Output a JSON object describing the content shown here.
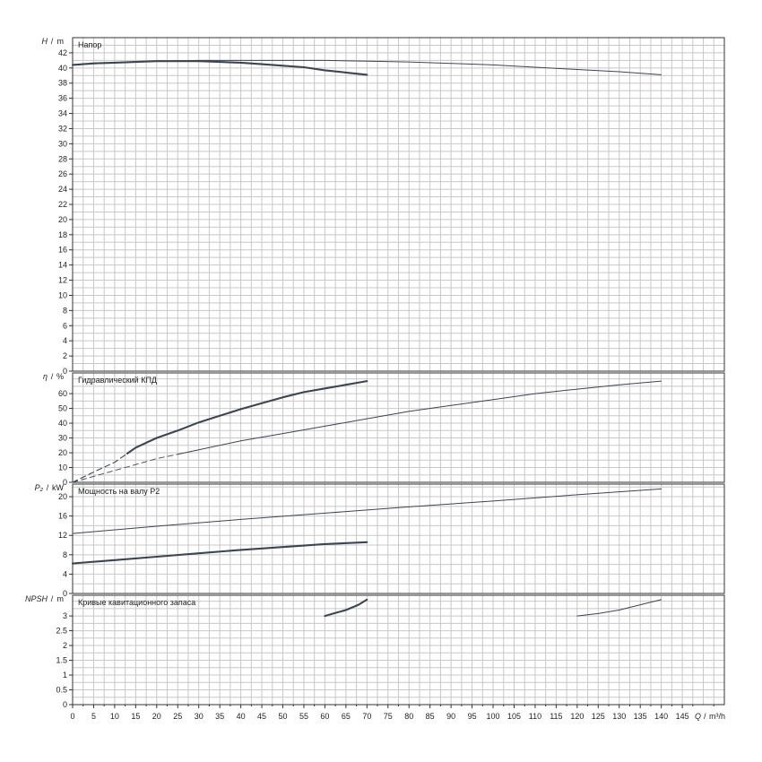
{
  "chart_data": [
    {
      "type": "line",
      "title": "Напор",
      "ylabel_var": "H",
      "ylabel_unit": "m",
      "ylim": [
        0,
        44
      ],
      "yticks": [
        "0",
        "2",
        "4",
        "6",
        "8",
        "10",
        "12",
        "14",
        "16",
        "18",
        "20",
        "22",
        "24",
        "26",
        "28",
        "30",
        "32",
        "34",
        "36",
        "38",
        "40",
        "42"
      ],
      "grid": true,
      "series": [
        {
          "style": "thick",
          "x": [
            0,
            5,
            10,
            15,
            20,
            25,
            30,
            35,
            40,
            45,
            50,
            55,
            60,
            65,
            70
          ],
          "y": [
            40.4,
            40.6,
            40.7,
            40.8,
            40.9,
            40.9,
            40.9,
            40.8,
            40.7,
            40.5,
            40.3,
            40.1,
            39.7,
            39.4,
            39.1
          ]
        },
        {
          "style": "thin",
          "x": [
            0,
            10,
            20,
            30,
            40,
            50,
            60,
            70,
            80,
            90,
            100,
            110,
            120,
            130,
            140
          ],
          "y": [
            40.4,
            40.7,
            40.9,
            41.0,
            41.0,
            41.0,
            41.0,
            40.9,
            40.8,
            40.6,
            40.4,
            40.1,
            39.8,
            39.5,
            39.1
          ]
        }
      ]
    },
    {
      "type": "line",
      "title": "Гидравлический КПД",
      "ylabel_var": "η",
      "ylabel_unit": "%",
      "ylim": [
        0,
        74
      ],
      "yticks": [
        "0",
        "10",
        "20",
        "30",
        "40",
        "50",
        "60"
      ],
      "grid": true,
      "series": [
        {
          "style": "thick",
          "x": [
            13,
            15,
            20,
            25,
            30,
            35,
            40,
            45,
            50,
            55,
            60,
            65,
            70
          ],
          "y": [
            19.5,
            23.5,
            30,
            35,
            40.5,
            45,
            49.5,
            53.5,
            57.5,
            61,
            63.5,
            66,
            68.5
          ]
        },
        {
          "style": "thick-dashed",
          "x": [
            0,
            5,
            10,
            13
          ],
          "y": [
            0,
            7,
            13.5,
            19.5
          ]
        },
        {
          "style": "thin",
          "x": [
            25,
            30,
            40,
            50,
            60,
            70,
            80,
            90,
            100,
            110,
            120,
            130,
            140
          ],
          "y": [
            19,
            22,
            28,
            33,
            38,
            43,
            48,
            52,
            56,
            60,
            63,
            66,
            68.5
          ]
        },
        {
          "style": "thin-dashed",
          "x": [
            0,
            5,
            10,
            15,
            20,
            25
          ],
          "y": [
            0,
            4,
            8,
            12,
            16,
            19
          ]
        }
      ]
    },
    {
      "type": "line",
      "title": "Мощность на валу P2",
      "ylabel_var": "P₂",
      "ylabel_unit": "kW",
      "ylim": [
        0,
        22.6
      ],
      "yticks": [
        "0",
        "4",
        "8",
        "12",
        "16",
        "20"
      ],
      "grid": true,
      "series": [
        {
          "style": "thick",
          "x": [
            0,
            10,
            20,
            30,
            40,
            50,
            60,
            70
          ],
          "y": [
            6.2,
            6.9,
            7.6,
            8.3,
            9.0,
            9.6,
            10.2,
            10.6
          ]
        },
        {
          "style": "thin",
          "x": [
            0,
            20,
            40,
            60,
            80,
            100,
            120,
            140
          ],
          "y": [
            12.4,
            13.9,
            15.3,
            16.6,
            17.9,
            19.1,
            20.4,
            21.6
          ]
        }
      ]
    },
    {
      "type": "line",
      "title": "Кривые кавитационного запаса",
      "ylabel_var": "NPSH",
      "ylabel_unit": "m",
      "ylim": [
        0,
        3.7
      ],
      "yticks": [
        "0",
        "0.5",
        "1",
        "1.5",
        "2",
        "2.5",
        "3"
      ],
      "grid": true,
      "series": [
        {
          "style": "thick",
          "x": [
            60,
            62,
            65,
            68,
            70
          ],
          "y": [
            3.0,
            3.08,
            3.2,
            3.38,
            3.55
          ]
        },
        {
          "style": "thin",
          "x": [
            120,
            125,
            130,
            135,
            140
          ],
          "y": [
            3.0,
            3.08,
            3.2,
            3.38,
            3.55
          ]
        }
      ]
    }
  ],
  "x_axis": {
    "label_var": "Q",
    "label_unit": "m³/h",
    "xlim": [
      0,
      155
    ],
    "ticks": [
      "0",
      "5",
      "10",
      "15",
      "20",
      "25",
      "30",
      "35",
      "40",
      "45",
      "50",
      "55",
      "60",
      "65",
      "70",
      "75",
      "80",
      "85",
      "90",
      "95",
      "100",
      "105",
      "110",
      "115",
      "120",
      "125",
      "130",
      "135",
      "140",
      "145"
    ]
  }
}
